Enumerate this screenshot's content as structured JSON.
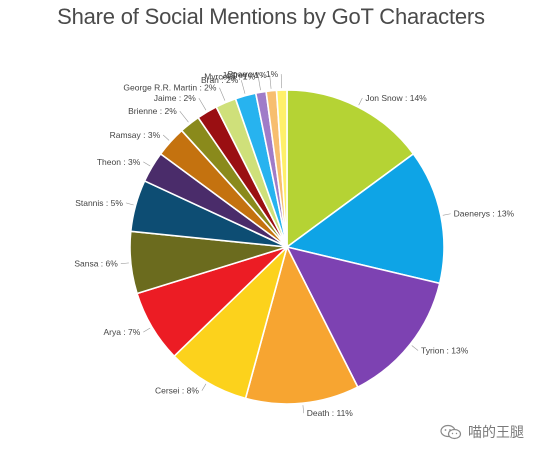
{
  "chart_data": {
    "type": "pie",
    "title": "Share of Social Mentions by GoT Characters",
    "slices": [
      {
        "label": "Jon Snow",
        "value": 14,
        "text": "Jon Snow : 14%",
        "color": "#b5d334"
      },
      {
        "label": "Daenerys",
        "value": 13,
        "text": "Daenerys : 13%",
        "color": "#0ea4e6"
      },
      {
        "label": "Tyrion",
        "value": 13,
        "text": "Tyrion : 13%",
        "color": "#7d42b2"
      },
      {
        "label": "Death",
        "value": 11,
        "text": "Death : 11%",
        "color": "#f7a531"
      },
      {
        "label": "Cersei",
        "value": 8,
        "text": "Cersei : 8%",
        "color": "#fcd21c"
      },
      {
        "label": "Arya",
        "value": 7,
        "text": "Arya : 7%",
        "color": "#ec1c24"
      },
      {
        "label": "Sansa",
        "value": 6,
        "text": "Sansa : 6%",
        "color": "#6b6b1e"
      },
      {
        "label": "Stannis",
        "value": 5,
        "text": "Stannis : 5%",
        "color": "#0d4d73"
      },
      {
        "label": "Theon",
        "value": 3,
        "text": "Theon : 3%",
        "color": "#4a2c6a"
      },
      {
        "label": "Ramsay",
        "value": 3,
        "text": "Ramsay : 3%",
        "color": "#c4720f"
      },
      {
        "label": "Brienne",
        "value": 2,
        "text": "Brienne : 2%",
        "color": "#8a8a1b"
      },
      {
        "label": "Jaime",
        "value": 2,
        "text": "Jaime : 2%",
        "color": "#9a0f12"
      },
      {
        "label": "George R.R. Martin",
        "value": 2,
        "text": "George R.R. Martin : 2%",
        "color": "#cfe07a"
      },
      {
        "label": "Bran",
        "value": 2,
        "text": "Bran : 2%",
        "color": "#27b3ef"
      },
      {
        "label": "Myrcella",
        "value": 1,
        "text": "Myrcella : 1%",
        "color": "#a07cc8"
      },
      {
        "label": "Joffrey",
        "value": 1,
        "text": "Joffrey : 1%",
        "color": "#f7be6f"
      },
      {
        "label": "Sparrow",
        "value": 1,
        "text": "Sparrow : 1%",
        "color": "#fff06a"
      }
    ]
  },
  "watermark": {
    "text": "喵的王腿",
    "icon": "wechat-icon"
  }
}
